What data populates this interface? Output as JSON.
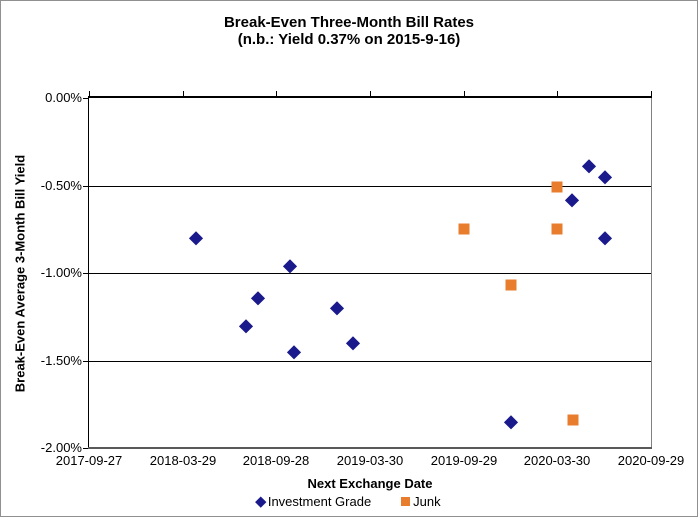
{
  "chart_data": {
    "type": "scatter",
    "title": "Break-Even Three-Month Bill Rates (n.b.: Yield 0.37% on 2015-9-16)",
    "title_lines": [
      "Break-Even Three-Month Bill Rates",
      "(n.b.: Yield  0.37% on 2015-9-16)"
    ],
    "xlabel": "Next Exchange Date",
    "ylabel": "Break-Even Average 3-Month  Bill Yield",
    "grid": true,
    "legend_position": "bottom",
    "x_axis": {
      "type": "date",
      "min": "2017-09-27",
      "max": "2020-09-29",
      "tick_labels": [
        "2017-09-27",
        "2018-03-29",
        "2018-09-28",
        "2019-03-30",
        "2019-09-29",
        "2020-03-30",
        "2020-09-29"
      ]
    },
    "y_axis": {
      "min": -2.0,
      "max": 0.0,
      "step": -0.5,
      "tick_labels": [
        "0.00%",
        "-0.50%",
        "-1.00%",
        "-1.50%",
        "-2.00%"
      ],
      "unit": "%"
    },
    "colors": {
      "investment_grade": "#1A1A8C",
      "junk": "#E87E2D",
      "gridline": "#000000",
      "plot_border_right": "#808080",
      "plot_border_bottom": "#595959"
    },
    "series": [
      {
        "name": "Investment Grade",
        "marker": "diamond",
        "color": "#1A1A8C",
        "points": [
          {
            "x": "2018-04-24",
            "y": -0.8
          },
          {
            "x": "2018-07-31",
            "y": -1.3
          },
          {
            "x": "2018-08-23",
            "y": -1.14
          },
          {
            "x": "2018-10-25",
            "y": -0.96
          },
          {
            "x": "2018-11-02",
            "y": -1.45
          },
          {
            "x": "2019-01-25",
            "y": -1.2
          },
          {
            "x": "2019-02-25",
            "y": -1.4
          },
          {
            "x": "2019-12-30",
            "y": -1.85
          },
          {
            "x": "2020-04-28",
            "y": -0.58
          },
          {
            "x": "2020-05-31",
            "y": -0.39
          },
          {
            "x": "2020-07-01",
            "y": -0.45
          },
          {
            "x": "2020-07-01",
            "y": -0.8
          }
        ]
      },
      {
        "name": "Junk",
        "marker": "square",
        "color": "#E87E2D",
        "points": [
          {
            "x": "2019-09-30",
            "y": -0.75
          },
          {
            "x": "2019-12-30",
            "y": -1.07
          },
          {
            "x": "2020-03-29",
            "y": -0.51
          },
          {
            "x": "2020-03-29",
            "y": -0.75
          },
          {
            "x": "2020-04-30",
            "y": -1.84
          }
        ]
      }
    ]
  }
}
